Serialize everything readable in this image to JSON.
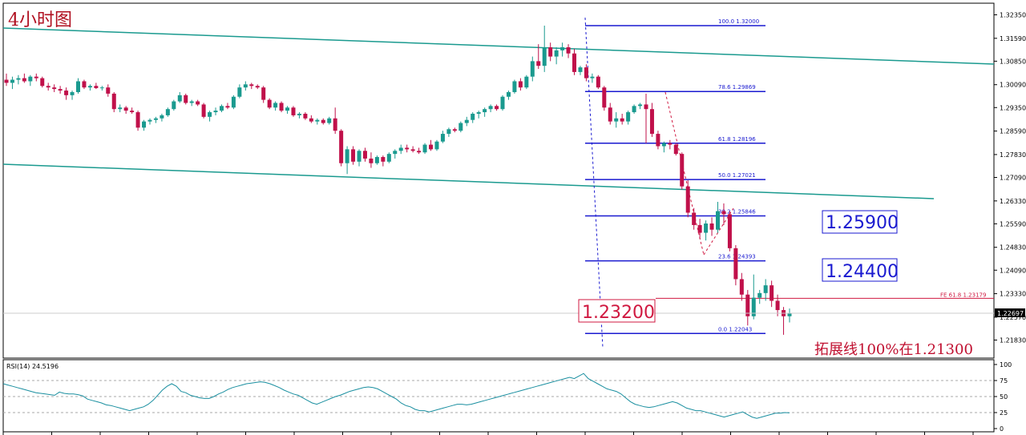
{
  "chart_data": [
    {
      "type": "candlestick",
      "title": "4小时图",
      "symbol_timeframe": "4小时图",
      "price_axis_ticks": [
        "1.32350",
        "1.31590",
        "1.30850",
        "1.30090",
        "1.29350",
        "1.28590",
        "1.27830",
        "1.27090",
        "1.26330",
        "1.25590",
        "1.24830",
        "1.24090",
        "1.23330",
        "1.22570",
        "1.21830"
      ],
      "current_price": "1.22697",
      "ylim": [
        1.2135,
        1.3257
      ],
      "fibonacci": [
        {
          "level": "100.0",
          "price": "1.32000",
          "value": 1.32
        },
        {
          "level": "78.6",
          "price": "1.29869",
          "value": 1.29869
        },
        {
          "level": "61.8",
          "price": "1.28196",
          "value": 1.28196
        },
        {
          "level": "50.0",
          "price": "1.27021",
          "value": 1.27021
        },
        {
          "level": "38.2",
          "price": "1.25846",
          "value": 1.25846
        },
        {
          "level": "23.6",
          "price": "1.24393",
          "value": 1.24393
        },
        {
          "level": "0.0",
          "price": "1.22043",
          "value": 1.22043
        }
      ],
      "fib_expansion": {
        "label": "FE 61.8",
        "price": "1.23179",
        "value": 1.23179
      },
      "annotations": {
        "box_1": "1.25900",
        "box_2": "1.24400",
        "box_3": "1.23200",
        "note": "拓展线100%在1.21300"
      },
      "candles": [
        [
          1.3025,
          1.3045,
          1.3005,
          1.3015
        ],
        [
          1.3015,
          1.3035,
          1.2995,
          1.3025
        ],
        [
          1.3025,
          1.304,
          1.301,
          1.303
        ],
        [
          1.303,
          1.3045,
          1.3015,
          1.302
        ],
        [
          1.302,
          1.304,
          1.3005,
          1.3035
        ],
        [
          1.3035,
          1.3045,
          1.302,
          1.303
        ],
        [
          1.303,
          1.3035,
          1.3,
          1.3005
        ],
        [
          1.3005,
          1.3015,
          1.299,
          1.3
        ],
        [
          1.3,
          1.301,
          1.2985,
          1.2995
        ],
        [
          1.2995,
          1.3005,
          1.298,
          1.299
        ],
        [
          1.299,
          1.3,
          1.296,
          1.2975
        ],
        [
          1.2975,
          1.299,
          1.296,
          1.2985
        ],
        [
          1.2985,
          1.303,
          1.298,
          1.302
        ],
        [
          1.302,
          1.3025,
          1.2995,
          1.3
        ],
        [
          1.3,
          1.301,
          1.299,
          1.3005
        ],
        [
          1.3005,
          1.3015,
          1.2995,
          1.2998
        ],
        [
          1.2998,
          1.3005,
          1.299,
          1.3
        ],
        [
          1.3,
          1.301,
          1.297,
          1.298
        ],
        [
          1.298,
          1.2985,
          1.292,
          1.293
        ],
        [
          1.293,
          1.2945,
          1.292,
          1.2935
        ],
        [
          1.2935,
          1.294,
          1.2915,
          1.2925
        ],
        [
          1.2925,
          1.2935,
          1.2915,
          1.292
        ],
        [
          1.292,
          1.2925,
          1.286,
          1.287
        ],
        [
          1.287,
          1.2895,
          1.286,
          1.289
        ],
        [
          1.289,
          1.29,
          1.288,
          1.2895
        ],
        [
          1.2895,
          1.2905,
          1.2885,
          1.29
        ],
        [
          1.29,
          1.2915,
          1.289,
          1.291
        ],
        [
          1.291,
          1.2935,
          1.2905,
          1.293
        ],
        [
          1.293,
          1.296,
          1.2925,
          1.2955
        ],
        [
          1.2955,
          1.2985,
          1.295,
          1.2975
        ],
        [
          1.2975,
          1.298,
          1.2945,
          1.295
        ],
        [
          1.295,
          1.296,
          1.294,
          1.2955
        ],
        [
          1.2955,
          1.296,
          1.294,
          1.2945
        ],
        [
          1.2945,
          1.295,
          1.29,
          1.2905
        ],
        [
          1.2905,
          1.2925,
          1.289,
          1.292
        ],
        [
          1.292,
          1.2935,
          1.291,
          1.2925
        ],
        [
          1.2925,
          1.2945,
          1.292,
          1.294
        ],
        [
          1.294,
          1.295,
          1.293,
          1.2935
        ],
        [
          1.2935,
          1.2975,
          1.293,
          1.297
        ],
        [
          1.297,
          1.301,
          1.2965,
          1.3
        ],
        [
          1.3,
          1.302,
          1.299,
          1.301
        ],
        [
          1.301,
          1.3015,
          1.2995,
          1.3005
        ],
        [
          1.3005,
          1.301,
          1.2995,
          1.3
        ],
        [
          1.3,
          1.3005,
          1.295,
          1.296
        ],
        [
          1.296,
          1.2965,
          1.293,
          1.2935
        ],
        [
          1.2935,
          1.2955,
          1.2925,
          1.295
        ],
        [
          1.295,
          1.2955,
          1.292,
          1.2925
        ],
        [
          1.2925,
          1.294,
          1.2915,
          1.2935
        ],
        [
          1.2935,
          1.294,
          1.2905,
          1.291
        ],
        [
          1.291,
          1.292,
          1.29,
          1.2915
        ],
        [
          1.2915,
          1.292,
          1.2895,
          1.29
        ],
        [
          1.29,
          1.291,
          1.2885,
          1.289
        ],
        [
          1.289,
          1.29,
          1.288,
          1.2895
        ],
        [
          1.2895,
          1.29,
          1.288,
          1.2885
        ],
        [
          1.2885,
          1.2905,
          1.288,
          1.29
        ],
        [
          1.29,
          1.2935,
          1.285,
          1.286
        ],
        [
          1.286,
          1.2865,
          1.2745,
          1.2755
        ],
        [
          1.2755,
          1.281,
          1.272,
          1.28
        ],
        [
          1.28,
          1.281,
          1.275,
          1.276
        ],
        [
          1.276,
          1.28,
          1.2745,
          1.2795
        ],
        [
          1.2795,
          1.2805,
          1.276,
          1.277
        ],
        [
          1.277,
          1.279,
          1.274,
          1.2755
        ],
        [
          1.2755,
          1.278,
          1.275,
          1.2775
        ],
        [
          1.2775,
          1.278,
          1.2745,
          1.276
        ],
        [
          1.276,
          1.279,
          1.2755,
          1.2785
        ],
        [
          1.2785,
          1.28,
          1.277,
          1.2795
        ],
        [
          1.2795,
          1.2815,
          1.2785,
          1.2805
        ],
        [
          1.2805,
          1.2815,
          1.279,
          1.28
        ],
        [
          1.28,
          1.281,
          1.279,
          1.2795
        ],
        [
          1.2795,
          1.2805,
          1.2785,
          1.279
        ],
        [
          1.279,
          1.282,
          1.2785,
          1.2815
        ],
        [
          1.2815,
          1.283,
          1.2795,
          1.28
        ],
        [
          1.28,
          1.283,
          1.2795,
          1.2825
        ],
        [
          1.2825,
          1.286,
          1.282,
          1.285
        ],
        [
          1.285,
          1.287,
          1.284,
          1.2865
        ],
        [
          1.2865,
          1.287,
          1.2855,
          1.286
        ],
        [
          1.286,
          1.289,
          1.2855,
          1.2885
        ],
        [
          1.2885,
          1.2905,
          1.2875,
          1.2895
        ],
        [
          1.2895,
          1.292,
          1.2885,
          1.2915
        ],
        [
          1.2915,
          1.2925,
          1.29,
          1.292
        ],
        [
          1.292,
          1.2935,
          1.2905,
          1.293
        ],
        [
          1.293,
          1.2945,
          1.292,
          1.294
        ],
        [
          1.294,
          1.2945,
          1.2925,
          1.293
        ],
        [
          1.293,
          1.2975,
          1.2925,
          1.297
        ],
        [
          1.297,
          1.299,
          1.296,
          1.2985
        ],
        [
          1.2985,
          1.3025,
          1.298,
          1.302
        ],
        [
          1.302,
          1.303,
          1.299,
          1.3
        ],
        [
          1.3,
          1.304,
          1.2995,
          1.3035
        ],
        [
          1.3035,
          1.31,
          1.302,
          1.3085
        ],
        [
          1.3085,
          1.314,
          1.306,
          1.307
        ],
        [
          1.307,
          1.32,
          1.305,
          1.313
        ],
        [
          1.313,
          1.3145,
          1.3085,
          1.31
        ],
        [
          1.31,
          1.313,
          1.3075,
          1.312
        ],
        [
          1.312,
          1.3145,
          1.31,
          1.313
        ],
        [
          1.313,
          1.314,
          1.3095,
          1.311
        ],
        [
          1.311,
          1.3125,
          1.304,
          1.305
        ],
        [
          1.305,
          1.307,
          1.304,
          1.3065
        ],
        [
          1.3065,
          1.3075,
          1.302,
          1.303
        ],
        [
          1.303,
          1.3045,
          1.3015,
          1.3035
        ],
        [
          1.3035,
          1.304,
          1.2995,
          1.3
        ],
        [
          1.3,
          1.3005,
          1.2925,
          1.2935
        ],
        [
          1.2935,
          1.295,
          1.288,
          1.289
        ],
        [
          1.289,
          1.292,
          1.287,
          1.29
        ],
        [
          1.29,
          1.2915,
          1.288,
          1.289
        ],
        [
          1.289,
          1.2925,
          1.288,
          1.292
        ],
        [
          1.292,
          1.2945,
          1.2915,
          1.294
        ],
        [
          1.294,
          1.295,
          1.293,
          1.2945
        ],
        [
          1.2945,
          1.298,
          1.282,
          1.293
        ],
        [
          1.293,
          1.295,
          1.284,
          1.285
        ],
        [
          1.285,
          1.286,
          1.28,
          1.281
        ],
        [
          1.281,
          1.2825,
          1.279,
          1.282
        ],
        [
          1.282,
          1.283,
          1.28,
          1.2815
        ],
        [
          1.2815,
          1.282,
          1.278,
          1.2785
        ],
        [
          1.2785,
          1.279,
          1.267,
          1.268
        ],
        [
          1.268,
          1.27,
          1.258,
          1.2595
        ],
        [
          1.2595,
          1.261,
          1.254,
          1.2555
        ],
        [
          1.2555,
          1.2575,
          1.251,
          1.253
        ],
        [
          1.253,
          1.257,
          1.2505,
          1.256
        ],
        [
          1.256,
          1.258,
          1.252,
          1.254
        ],
        [
          1.254,
          1.263,
          1.253,
          1.26
        ],
        [
          1.26,
          1.2625,
          1.2555,
          1.259
        ],
        [
          1.259,
          1.26,
          1.247,
          1.248
        ],
        [
          1.248,
          1.249,
          1.236,
          1.238
        ],
        [
          1.238,
          1.24,
          1.231,
          1.233
        ],
        [
          1.233,
          1.2345,
          1.223,
          1.226
        ],
        [
          1.226,
          1.2395,
          1.225,
          1.232
        ],
        [
          1.232,
          1.2345,
          1.23,
          1.2335
        ],
        [
          1.2335,
          1.238,
          1.231,
          1.236
        ],
        [
          1.236,
          1.2375,
          1.229,
          1.231
        ],
        [
          1.231,
          1.233,
          1.226,
          1.228
        ],
        [
          1.228,
          1.229,
          1.22,
          1.226
        ],
        [
          1.226,
          1.2285,
          1.224,
          1.227
        ]
      ]
    },
    {
      "type": "line",
      "title": "RSI(14) 24.5196",
      "y_ticks": [
        "100",
        "75",
        "50",
        "25",
        "0"
      ],
      "levels": [
        75,
        50,
        25
      ],
      "ylim": [
        0,
        100
      ],
      "values": [
        70,
        68,
        66,
        64,
        62,
        60,
        58,
        56,
        55,
        54,
        53,
        52,
        57,
        55,
        54,
        54,
        53,
        51,
        46,
        44,
        42,
        40,
        37,
        36,
        34,
        32,
        30,
        28,
        30,
        32,
        34,
        38,
        44,
        52,
        60,
        66,
        70,
        66,
        58,
        56,
        52,
        50,
        48,
        47,
        47,
        50,
        54,
        57,
        61,
        64,
        66,
        68,
        70,
        71,
        72,
        73,
        72,
        70,
        67,
        64,
        60,
        57,
        54,
        52,
        48,
        44,
        40,
        38,
        41,
        44,
        47,
        50,
        52,
        55,
        58,
        60,
        62,
        64,
        65,
        64,
        62,
        58,
        54,
        50,
        46,
        40,
        36,
        34,
        30,
        28,
        28,
        26,
        28,
        30,
        32,
        34,
        36,
        38,
        38,
        37,
        38,
        40,
        42,
        44,
        46,
        48,
        50,
        52,
        54,
        56,
        58,
        60,
        62,
        64,
        66,
        68,
        70,
        72,
        74,
        76,
        78,
        80,
        78,
        82,
        86,
        78,
        74,
        70,
        66,
        62,
        60,
        58,
        54,
        48,
        42,
        38,
        36,
        34,
        33,
        34,
        36,
        38,
        40,
        42,
        40,
        36,
        32,
        30,
        28,
        28,
        26,
        24,
        22,
        20,
        18,
        20,
        22,
        24,
        26,
        22,
        18,
        16,
        18,
        20,
        22,
        24,
        24,
        25,
        24.5
      ]
    }
  ]
}
